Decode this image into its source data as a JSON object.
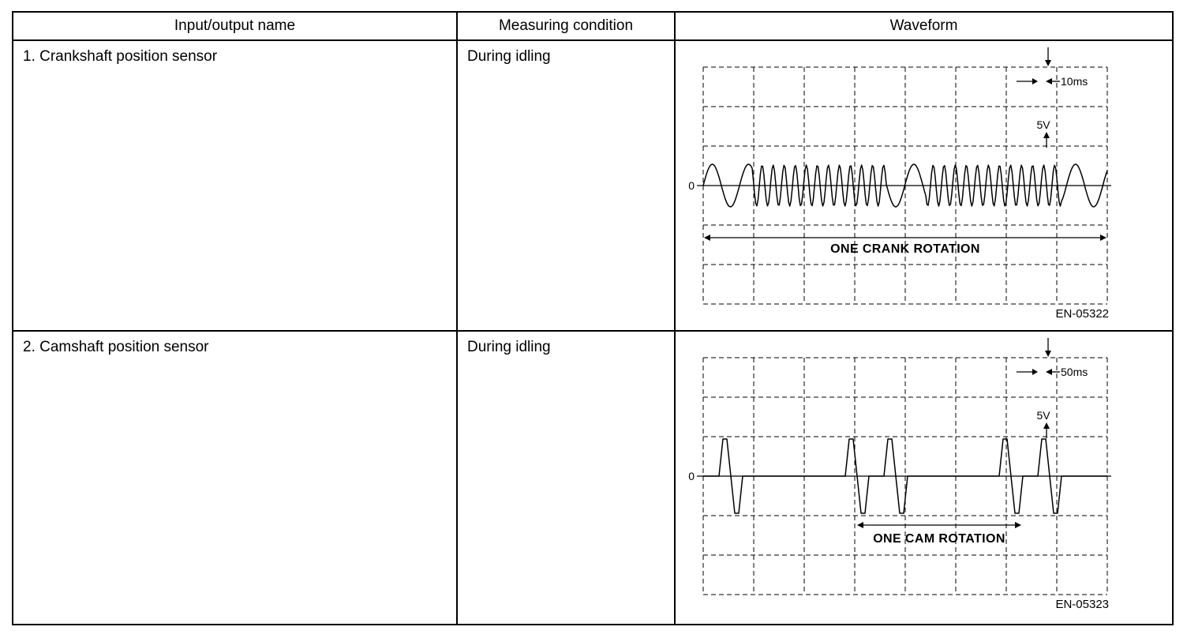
{
  "table": {
    "headers": {
      "name": "Input/output name",
      "condition": "Measuring condition",
      "waveform": "Waveform"
    },
    "rows": [
      {
        "name": "1. Crankshaft position sensor",
        "condition": "During idling",
        "waveform": {
          "type": "sine-burst",
          "zero_label": "0",
          "volt_div_label": "5V",
          "time_div_label": "10ms",
          "rotation_label": "ONE CRANK ROTATION",
          "figure_id": "EN-05322",
          "grid": {
            "cols": 8,
            "rows": 6,
            "zero_row": 3
          },
          "segments": [
            {
              "len": 62,
              "wavelength": 46,
              "amp": 27
            },
            {
              "len": 170,
              "wavelength": 14,
              "amp": 26
            },
            {
              "len": 50,
              "wavelength": 46,
              "amp": 27
            },
            {
              "len": 172,
              "wavelength": 14,
              "amp": 26
            },
            {
              "len": 58,
              "wavelength": 46,
              "amp": 27
            }
          ]
        }
      },
      {
        "name": "2. Camshaft position sensor",
        "condition": "During idling",
        "waveform": {
          "type": "pulse-train",
          "zero_label": "0",
          "volt_div_label": "5V",
          "time_div_label": "50ms",
          "rotation_label": "ONE CAM ROTATION",
          "figure_id": "EN-05323",
          "grid": {
            "cols": 8,
            "rows": 6,
            "zero_row": 3
          },
          "pulses": {
            "amp": 47,
            "centers": [
              38,
              198,
              247,
              393,
              442
            ]
          }
        }
      }
    ]
  }
}
